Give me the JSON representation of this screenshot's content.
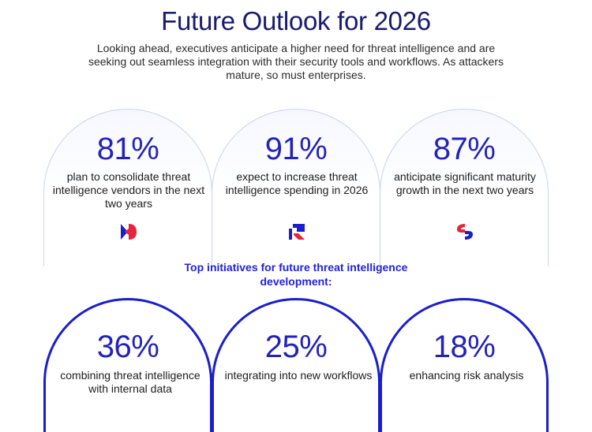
{
  "header": {
    "title": "Future Outlook for 2026",
    "intro": "Looking ahead, executives anticipate a higher need for threat intelligence and are seeking out seamless integration with their security tools and workflows. As attackers mature, so must enterprises."
  },
  "stats_top": [
    {
      "value": "81%",
      "text": "plan to consolidate threat intelligence vendors in the next two years",
      "logo": "split-d-logo-icon"
    },
    {
      "value": "91%",
      "text": "expect to increase threat intelligence spending in 2026",
      "logo": "block-r-logo-icon"
    },
    {
      "value": "87%",
      "text": "anticipate significant maturity growth in the next two years",
      "logo": "split-s-logo-icon"
    }
  ],
  "initiatives": {
    "heading": "Top initiatives for future threat intelligence development:",
    "items": [
      {
        "value": "36%",
        "text": "combining threat intelligence with internal data"
      },
      {
        "value": "25%",
        "text": "integrating into new workflows"
      },
      {
        "value": "18%",
        "text": "enhancing risk analysis"
      }
    ]
  },
  "colors": {
    "title": "#1a1a6e",
    "stat": "#2323b8",
    "accent_blue": "#1b1fc9",
    "accent_red": "#e8243c",
    "heading": "#2323d6"
  }
}
